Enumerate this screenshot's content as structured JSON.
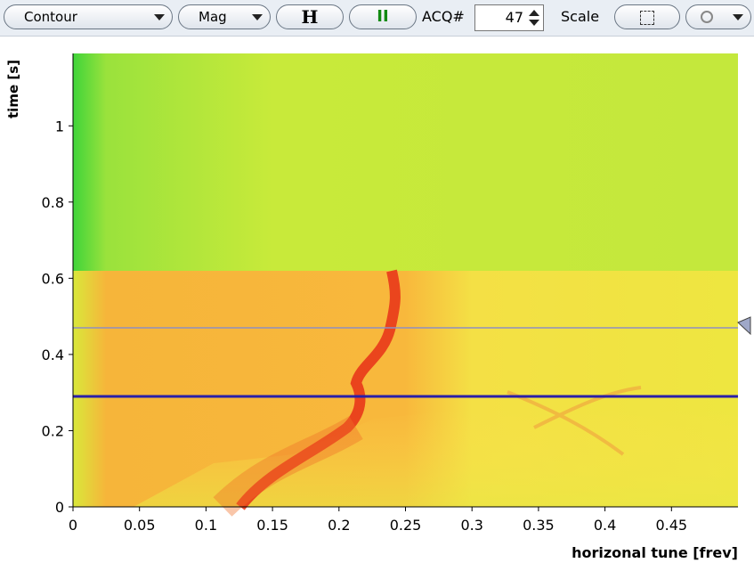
{
  "toolbar": {
    "mode": "Contour",
    "display": "Mag",
    "hold_button": "H",
    "pause_button": "II",
    "acq_label": "ACQ#",
    "acq_value": "47",
    "scale_label": "Scale"
  },
  "chart_data": {
    "type": "heatmap",
    "xlabel": "horizonal tune [frev]",
    "ylabel": "time [s]",
    "xlim": [
      0,
      0.5
    ],
    "ylim": [
      0,
      1.19
    ],
    "xticks": [
      0,
      0.05,
      0.1,
      0.15,
      0.2,
      0.25,
      0.3,
      0.35,
      0.4,
      0.45
    ],
    "yticks": [
      0,
      0.2,
      0.4,
      0.6,
      0.8,
      1
    ],
    "hlines": [
      {
        "value": 0.47,
        "color": "#8f8fc0"
      },
      {
        "value": 0.29,
        "color": "#2a1fa8"
      }
    ]
  }
}
